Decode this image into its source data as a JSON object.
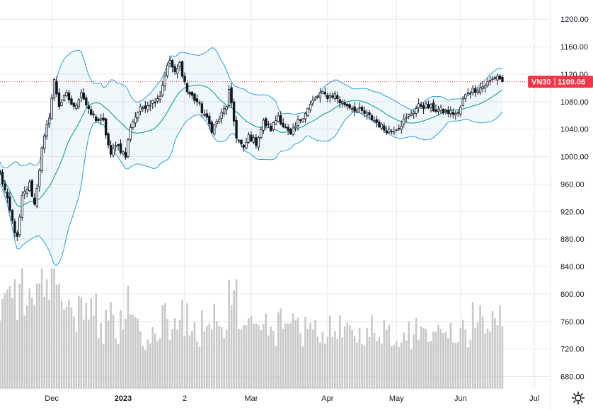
{
  "chart_data": {
    "type": "candlestick",
    "symbol": "VN30",
    "last_price": "1109.06",
    "last_value": 1109.06,
    "ylim": [
      662,
      1228
    ],
    "y_ticks": [
      {
        "value": 1200,
        "label": "1200.00"
      },
      {
        "value": 1160,
        "label": "1160.00"
      },
      {
        "value": 1120,
        "label": "1120.00"
      },
      {
        "value": 1080,
        "label": "1080.00"
      },
      {
        "value": 1040,
        "label": "1040.00"
      },
      {
        "value": 1000,
        "label": "1000.00"
      },
      {
        "value": 960,
        "label": "960.00"
      },
      {
        "value": 920,
        "label": "920.00"
      },
      {
        "value": 880,
        "label": "880.00"
      },
      {
        "value": 840,
        "label": "840.00"
      },
      {
        "value": 800,
        "label": "800.00"
      },
      {
        "value": 760,
        "label": "760.00"
      },
      {
        "value": 720,
        "label": "720.00"
      },
      {
        "value": 680,
        "label": "680.00"
      }
    ],
    "x_ticks": [
      {
        "label": "Dec",
        "bold": false
      },
      {
        "label": "2023",
        "bold": true
      },
      {
        "label": "2",
        "bold": false
      },
      {
        "label": "Mar",
        "bold": false
      },
      {
        "label": "Apr",
        "bold": false
      },
      {
        "label": "May",
        "bold": false
      },
      {
        "label": "Jun",
        "bold": false
      },
      {
        "label": "Jul",
        "bold": false
      }
    ],
    "x_tick_bar_index": [
      21,
      50,
      75,
      102,
      133,
      161,
      187,
      217
    ],
    "bar_count": 220,
    "anchors": [
      [
        0,
        975
      ],
      [
        2,
        950
      ],
      [
        5,
        905
      ],
      [
        7,
        880
      ],
      [
        9,
        940
      ],
      [
        12,
        960
      ],
      [
        14,
        930
      ],
      [
        17,
        1010
      ],
      [
        20,
        1060
      ],
      [
        22,
        1110
      ],
      [
        24,
        1075
      ],
      [
        27,
        1090
      ],
      [
        30,
        1070
      ],
      [
        33,
        1095
      ],
      [
        36,
        1065
      ],
      [
        39,
        1055
      ],
      [
        42,
        1050
      ],
      [
        45,
        1000
      ],
      [
        47,
        1020
      ],
      [
        51,
        1000
      ],
      [
        53,
        1045
      ],
      [
        56,
        1065
      ],
      [
        59,
        1075
      ],
      [
        62,
        1080
      ],
      [
        65,
        1090
      ],
      [
        67,
        1120
      ],
      [
        69,
        1140
      ],
      [
        71,
        1120
      ],
      [
        73,
        1135
      ],
      [
        76,
        1095
      ],
      [
        80,
        1080
      ],
      [
        83,
        1060
      ],
      [
        86,
        1040
      ],
      [
        89,
        1055
      ],
      [
        92,
        1075
      ],
      [
        93,
        1095
      ],
      [
        96,
        1030
      ],
      [
        99,
        1010
      ],
      [
        101,
        1030
      ],
      [
        104,
        1020
      ],
      [
        107,
        1050
      ],
      [
        110,
        1040
      ],
      [
        113,
        1060
      ],
      [
        115,
        1045
      ],
      [
        118,
        1030
      ],
      [
        121,
        1050
      ],
      [
        124,
        1065
      ],
      [
        127,
        1080
      ],
      [
        130,
        1092
      ],
      [
        133,
        1088
      ],
      [
        136,
        1090
      ],
      [
        138,
        1080
      ],
      [
        141,
        1075
      ],
      [
        144,
        1070
      ],
      [
        147,
        1065
      ],
      [
        150,
        1058
      ],
      [
        153,
        1050
      ],
      [
        156,
        1040
      ],
      [
        159,
        1038
      ],
      [
        162,
        1045
      ],
      [
        165,
        1055
      ],
      [
        168,
        1068
      ],
      [
        171,
        1075
      ],
      [
        174,
        1072
      ],
      [
        177,
        1068
      ],
      [
        180,
        1066
      ],
      [
        183,
        1064
      ],
      [
        186,
        1062
      ],
      [
        188,
        1082
      ],
      [
        190,
        1095
      ],
      [
        193,
        1098
      ],
      [
        196,
        1102
      ],
      [
        199,
        1110
      ],
      [
        202,
        1118
      ],
      [
        204,
        1109.06
      ]
    ],
    "volume_ylim": [
      0,
      900
    ],
    "bollinger": {
      "period": 20,
      "std_dev": 2
    },
    "legend": "none"
  },
  "colors": {
    "candle": "#131722",
    "candle_up_fill": "#ffffff",
    "band_line": "#2a9fd6",
    "band_fill": "#2a9fd6",
    "middle_line": "#26a69a",
    "volume": "#c8c8c8",
    "grid": "#e8e8ec",
    "price_line": "#e53935",
    "badge_bg": "#f23645"
  },
  "icons": {
    "settings": "settings-gear-icon"
  }
}
